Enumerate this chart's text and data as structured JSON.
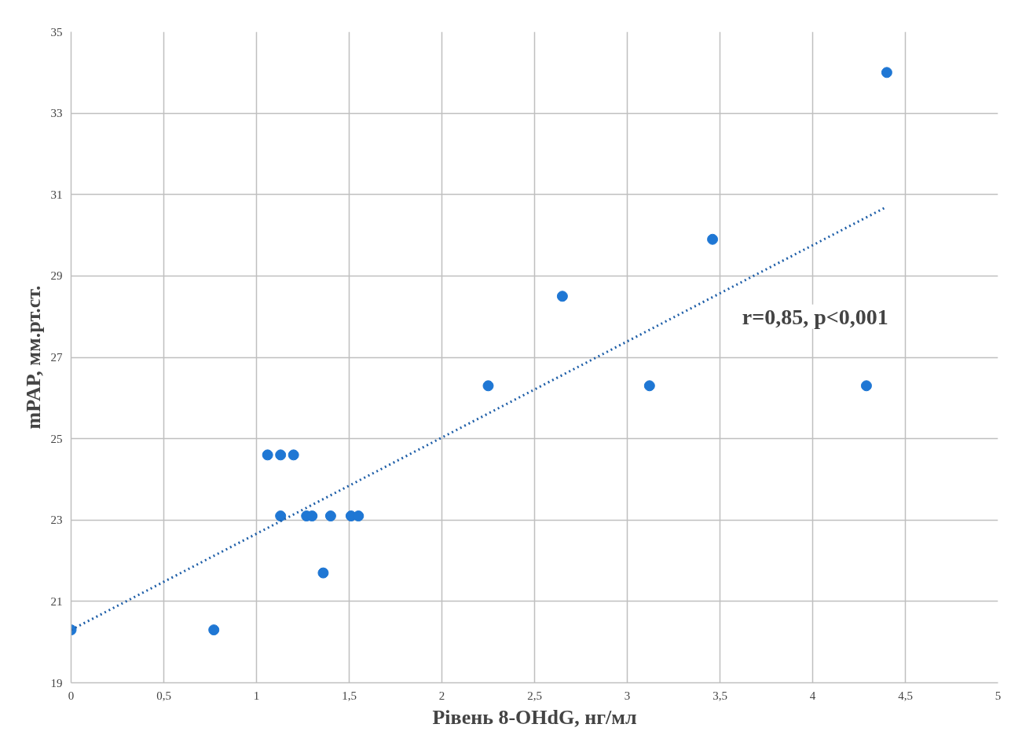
{
  "chart_data": {
    "type": "scatter",
    "xlabel": "Рівень 8-OHdG, нг/мл",
    "ylabel": "mPAP, мм.рт.ст.",
    "xlim": [
      0,
      5
    ],
    "ylim": [
      19,
      35
    ],
    "xticks": [
      0,
      {
        "value": 0.5,
        "label": "0,5"
      },
      1,
      {
        "value": 1.5,
        "label": "1,5"
      },
      2,
      {
        "value": 2.5,
        "label": "2,5"
      },
      3,
      {
        "value": 3.5,
        "label": "3,5"
      },
      4,
      {
        "value": 4.5,
        "label": "4,5"
      },
      5
    ],
    "yticks": [
      19,
      21,
      23,
      25,
      27,
      29,
      31,
      33,
      35
    ],
    "grid": true,
    "marker": "circle",
    "annotations": [
      "r=0,85, p<0,001"
    ],
    "series": [
      {
        "color": "#1f77d4",
        "x": [
          0,
          0.77,
          1.06,
          1.13,
          1.2,
          1.13,
          1.27,
          1.3,
          1.4,
          1.51,
          1.55,
          1.36,
          2.25,
          2.65,
          3.12,
          3.46,
          4.29,
          4.4
        ],
        "values": [
          20.3,
          20.3,
          24.6,
          24.6,
          24.6,
          23.1,
          23.1,
          23.1,
          23.1,
          23.1,
          23.1,
          21.7,
          26.3,
          28.5,
          26.3,
          29.9,
          26.3,
          34.0
        ]
      },
      {
        "type": "line",
        "color": "#1f5fa8",
        "line_style": "dotted",
        "marker": "none",
        "x": [
          0,
          4.4
        ],
        "values": [
          20.3,
          30.7
        ]
      }
    ]
  }
}
